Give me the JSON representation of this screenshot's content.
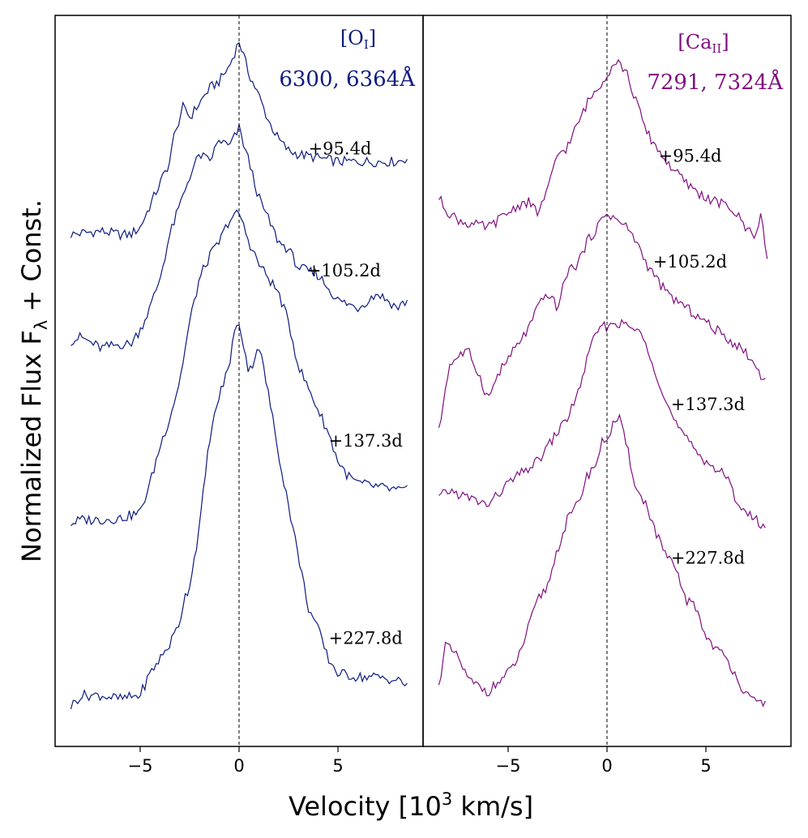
{
  "figure": {
    "ylabel_main": "Normalized Flux F",
    "ylabel_sub": "λ",
    "ylabel_tail": " +  Const.",
    "xlabel_main": "Velocity [10",
    "xlabel_sup": "3",
    "xlabel_tail": " km/s]"
  },
  "chart_data": [
    {
      "type": "line",
      "panel": "left",
      "line_name_main": "[O",
      "line_name_sub": "I",
      "line_name_close": "]",
      "wavelengths": "6300, 6364Å",
      "color": "#0c1a80",
      "xlabel": "Velocity [10^3 km/s]",
      "xlim": [
        -9.3,
        9.3
      ],
      "ylim": [
        0,
        1
      ],
      "xticks": [
        -5,
        0,
        5
      ],
      "xtick_labels": [
        "−5",
        "0",
        "5"
      ],
      "zero_line": 0,
      "series": [
        {
          "name": "+95.4d",
          "label": "+95.4d",
          "label_x": 5.1,
          "label_y": 0.81,
          "points": [
            [
              -8.5,
              0.7
            ],
            [
              -8,
              0.702
            ],
            [
              -7,
              0.705
            ],
            [
              -6,
              0.7
            ],
            [
              -5.5,
              0.7
            ],
            [
              -5,
              0.71
            ],
            [
              -4.5,
              0.74
            ],
            [
              -4,
              0.77
            ],
            [
              -3.5,
              0.8
            ],
            [
              -3.2,
              0.85
            ],
            [
              -3,
              0.85
            ],
            [
              -2.8,
              0.88
            ],
            [
              -2.5,
              0.86
            ],
            [
              -2,
              0.88
            ],
            [
              -1.5,
              0.9
            ],
            [
              -1,
              0.91
            ],
            [
              -0.5,
              0.93
            ],
            [
              0,
              0.965
            ],
            [
              0.5,
              0.92
            ],
            [
              1,
              0.89
            ],
            [
              1.5,
              0.855
            ],
            [
              2,
              0.83
            ],
            [
              2.5,
              0.815
            ],
            [
              3,
              0.81
            ],
            [
              4,
              0.805
            ],
            [
              5,
              0.8
            ],
            [
              6,
              0.8
            ],
            [
              7,
              0.8
            ],
            [
              8,
              0.8
            ],
            [
              8.5,
              0.805
            ]
          ]
        },
        {
          "name": "+105.2d",
          "label": "+105.2d",
          "label_x": 5.3,
          "label_y": 0.643,
          "points": [
            [
              -8.5,
              0.555
            ],
            [
              -8,
              0.56
            ],
            [
              -7,
              0.545
            ],
            [
              -6,
              0.55
            ],
            [
              -5.5,
              0.55
            ],
            [
              -5,
              0.57
            ],
            [
              -4.5,
              0.6
            ],
            [
              -4,
              0.64
            ],
            [
              -3.5,
              0.7
            ],
            [
              -3,
              0.74
            ],
            [
              -2.5,
              0.78
            ],
            [
              -2,
              0.81
            ],
            [
              -1.5,
              0.8
            ],
            [
              -1,
              0.83
            ],
            [
              -0.5,
              0.82
            ],
            [
              0,
              0.845
            ],
            [
              0.5,
              0.8
            ],
            [
              1,
              0.75
            ],
            [
              1.5,
              0.72
            ],
            [
              2,
              0.69
            ],
            [
              2.5,
              0.68
            ],
            [
              3,
              0.655
            ],
            [
              4,
              0.645
            ],
            [
              5,
              0.61
            ],
            [
              6,
              0.6
            ],
            [
              7,
              0.62
            ],
            [
              8,
              0.6
            ],
            [
              8.5,
              0.61
            ]
          ]
        },
        {
          "name": "+137.3d",
          "label": "+137.3d",
          "label_x": 6.4,
          "label_y": 0.41,
          "points": [
            [
              -8.5,
              0.305
            ],
            [
              -8,
              0.31
            ],
            [
              -7,
              0.31
            ],
            [
              -6,
              0.312
            ],
            [
              -5,
              0.32
            ],
            [
              -4.5,
              0.36
            ],
            [
              -4,
              0.41
            ],
            [
              -3.5,
              0.45
            ],
            [
              -3,
              0.5
            ],
            [
              -2.5,
              0.58
            ],
            [
              -2,
              0.64
            ],
            [
              -1.5,
              0.67
            ],
            [
              -1,
              0.69
            ],
            [
              -0.5,
              0.72
            ],
            [
              0,
              0.73
            ],
            [
              0.5,
              0.69
            ],
            [
              1,
              0.66
            ],
            [
              1.5,
              0.64
            ],
            [
              2,
              0.62
            ],
            [
              2.5,
              0.58
            ],
            [
              3,
              0.52
            ],
            [
              3.5,
              0.49
            ],
            [
              4,
              0.46
            ],
            [
              4.5,
              0.43
            ],
            [
              5,
              0.39
            ],
            [
              5.5,
              0.37
            ],
            [
              6,
              0.36
            ],
            [
              7,
              0.355
            ],
            [
              8,
              0.35
            ],
            [
              8.5,
              0.35
            ]
          ]
        },
        {
          "name": "+227.8d",
          "label": "+227.8d",
          "label_x": 6.4,
          "label_y": 0.14,
          "points": [
            [
              -8.5,
              0.055
            ],
            [
              -8,
              0.07
            ],
            [
              -7,
              0.07
            ],
            [
              -6,
              0.065
            ],
            [
              -5,
              0.07
            ],
            [
              -4.5,
              0.1
            ],
            [
              -4,
              0.12
            ],
            [
              -3.5,
              0.14
            ],
            [
              -3,
              0.17
            ],
            [
              -2.8,
              0.2
            ],
            [
              -2.5,
              0.22
            ],
            [
              -2,
              0.3
            ],
            [
              -1.5,
              0.42
            ],
            [
              -1,
              0.48
            ],
            [
              -0.5,
              0.52
            ],
            [
              -0.3,
              0.56
            ],
            [
              0,
              0.58
            ],
            [
              0.3,
              0.54
            ],
            [
              0.5,
              0.51
            ],
            [
              1,
              0.55
            ],
            [
              1.5,
              0.48
            ],
            [
              2,
              0.4
            ],
            [
              2.5,
              0.33
            ],
            [
              3,
              0.26
            ],
            [
              3.5,
              0.19
            ],
            [
              4,
              0.16
            ],
            [
              4.5,
              0.12
            ],
            [
              5,
              0.1
            ],
            [
              6,
              0.095
            ],
            [
              7,
              0.095
            ],
            [
              8,
              0.09
            ],
            [
              8.5,
              0.085
            ]
          ]
        }
      ]
    },
    {
      "type": "line",
      "panel": "right",
      "line_name_main": "[Ca",
      "line_name_sub": "II",
      "line_name_close": "]",
      "wavelengths": "7291, 7324Å",
      "color": "#800f80",
      "xlabel": "Velocity [10^3 km/s]",
      "xlim": [
        -9.3,
        9.3
      ],
      "ylim": [
        0,
        1
      ],
      "xticks": [
        -5,
        0,
        5
      ],
      "xtick_labels": [
        "−5",
        "0",
        "5"
      ],
      "zero_line": 0,
      "series": [
        {
          "name": "+95.4d",
          "label": "+95.4d",
          "label_x": 4.2,
          "label_y": 0.8,
          "points": [
            [
              -8.5,
              0.75
            ],
            [
              -8,
              0.73
            ],
            [
              -7.5,
              0.72
            ],
            [
              -7,
              0.715
            ],
            [
              -6,
              0.71
            ],
            [
              -5,
              0.73
            ],
            [
              -4.5,
              0.74
            ],
            [
              -4,
              0.745
            ],
            [
              -3.5,
              0.73
            ],
            [
              -3,
              0.76
            ],
            [
              -2.5,
              0.81
            ],
            [
              -2,
              0.82
            ],
            [
              -1.5,
              0.85
            ],
            [
              -1,
              0.88
            ],
            [
              -0.5,
              0.9
            ],
            [
              0,
              0.92
            ],
            [
              0.5,
              0.94
            ],
            [
              1,
              0.92
            ],
            [
              1.5,
              0.88
            ],
            [
              2,
              0.84
            ],
            [
              2.5,
              0.82
            ],
            [
              3,
              0.8
            ],
            [
              4,
              0.77
            ],
            [
              5,
              0.75
            ],
            [
              6,
              0.74
            ],
            [
              6.5,
              0.73
            ],
            [
              7,
              0.71
            ],
            [
              7.5,
              0.7
            ],
            [
              7.8,
              0.73
            ],
            [
              8.1,
              0.66
            ]
          ]
        },
        {
          "name": "+105.2d",
          "label": "+105.2d",
          "label_x": 4.2,
          "label_y": 0.655,
          "points": [
            [
              -8.5,
              0.43
            ],
            [
              -8,
              0.52
            ],
            [
              -7.5,
              0.535
            ],
            [
              -7,
              0.54
            ],
            [
              -6.5,
              0.51
            ],
            [
              -6,
              0.475
            ],
            [
              -5.5,
              0.51
            ],
            [
              -5,
              0.53
            ],
            [
              -4.5,
              0.55
            ],
            [
              -4,
              0.57
            ],
            [
              -3.5,
              0.6
            ],
            [
              -3,
              0.62
            ],
            [
              -2.5,
              0.6
            ],
            [
              -2,
              0.65
            ],
            [
              -1.5,
              0.66
            ],
            [
              -1,
              0.69
            ],
            [
              -0.5,
              0.71
            ],
            [
              0,
              0.73
            ],
            [
              0.5,
              0.72
            ],
            [
              1,
              0.71
            ],
            [
              1.5,
              0.69
            ],
            [
              2,
              0.66
            ],
            [
              2.5,
              0.64
            ],
            [
              3,
              0.62
            ],
            [
              4,
              0.6
            ],
            [
              5,
              0.58
            ],
            [
              6,
              0.56
            ],
            [
              7,
              0.54
            ],
            [
              7.5,
              0.52
            ],
            [
              8,
              0.5
            ]
          ]
        },
        {
          "name": "+137.3d",
          "label": "+137.3d",
          "label_x": 5.1,
          "label_y": 0.46,
          "points": [
            [
              -8.5,
              0.34
            ],
            [
              -8,
              0.35
            ],
            [
              -7,
              0.34
            ],
            [
              -6,
              0.33
            ],
            [
              -5,
              0.36
            ],
            [
              -4.5,
              0.37
            ],
            [
              -4,
              0.38
            ],
            [
              -3.5,
              0.39
            ],
            [
              -3,
              0.41
            ],
            [
              -2.5,
              0.43
            ],
            [
              -2,
              0.45
            ],
            [
              -1.5,
              0.48
            ],
            [
              -1,
              0.53
            ],
            [
              -0.5,
              0.57
            ],
            [
              0,
              0.575
            ],
            [
              0.5,
              0.58
            ],
            [
              1,
              0.575
            ],
            [
              1.5,
              0.57
            ],
            [
              2,
              0.55
            ],
            [
              2.5,
              0.51
            ],
            [
              3,
              0.47
            ],
            [
              3.5,
              0.44
            ],
            [
              4,
              0.42
            ],
            [
              5,
              0.39
            ],
            [
              6,
              0.37
            ],
            [
              6.5,
              0.34
            ],
            [
              7,
              0.32
            ],
            [
              7.5,
              0.31
            ],
            [
              8,
              0.3
            ]
          ]
        },
        {
          "name": "+227.8d",
          "label": "+227.8d",
          "label_x": 5.1,
          "label_y": 0.25,
          "points": [
            [
              -8.5,
              0.08
            ],
            [
              -8.2,
              0.14
            ],
            [
              -7.5,
              0.12
            ],
            [
              -7,
              0.09
            ],
            [
              -6,
              0.075
            ],
            [
              -5,
              0.1
            ],
            [
              -4.5,
              0.12
            ],
            [
              -4,
              0.16
            ],
            [
              -3.5,
              0.2
            ],
            [
              -3,
              0.22
            ],
            [
              -2.5,
              0.27
            ],
            [
              -2,
              0.31
            ],
            [
              -1.5,
              0.33
            ],
            [
              -1,
              0.37
            ],
            [
              -0.5,
              0.39
            ],
            [
              -0.2,
              0.42
            ],
            [
              0,
              0.42
            ],
            [
              0.3,
              0.44
            ],
            [
              0.6,
              0.45
            ],
            [
              1,
              0.41
            ],
            [
              1.5,
              0.35
            ],
            [
              2,
              0.33
            ],
            [
              2.5,
              0.29
            ],
            [
              3,
              0.26
            ],
            [
              3.5,
              0.24
            ],
            [
              4,
              0.2
            ],
            [
              4.5,
              0.19
            ],
            [
              5,
              0.15
            ],
            [
              6,
              0.12
            ],
            [
              6.5,
              0.1
            ],
            [
              7,
              0.07
            ],
            [
              7.5,
              0.06
            ],
            [
              8,
              0.06
            ]
          ]
        }
      ]
    }
  ]
}
